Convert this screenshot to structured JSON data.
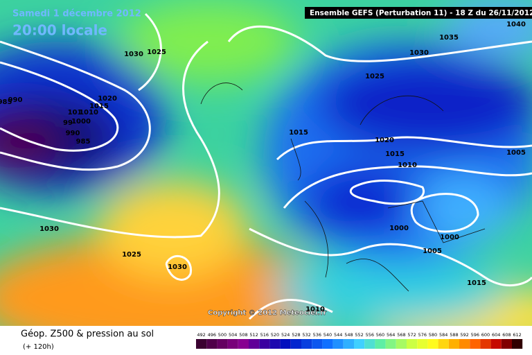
{
  "header": {
    "date": "Samedi 1 décembre 2012",
    "time": "20:00 locale",
    "run": "Ensemble GEFS (Perturbation 11)  -  18 Z du 26/11/2012"
  },
  "isobar_labels": [
    1040,
    1035,
    1030,
    1025,
    1030,
    1025,
    985,
    990,
    1020,
    1015,
    1010,
    101,
    99,
    1000,
    990,
    985,
    1015,
    1020,
    1015,
    1010,
    1005,
    1000,
    1000,
    1005,
    1015,
    1030,
    1025,
    1030,
    1010
  ],
  "copyright": "Copyright © 2012 Meteociel.fr",
  "legend": {
    "title": "Géop. Z500 & pression au sol",
    "subtitle": "(+ 120h)",
    "scale": [
      492,
      496,
      500,
      504,
      508,
      512,
      516,
      520,
      524,
      528,
      532,
      536,
      540,
      544,
      548,
      552,
      556,
      560,
      564,
      568,
      572,
      576,
      580,
      584,
      588,
      592,
      596,
      600,
      604,
      608,
      612
    ]
  }
}
